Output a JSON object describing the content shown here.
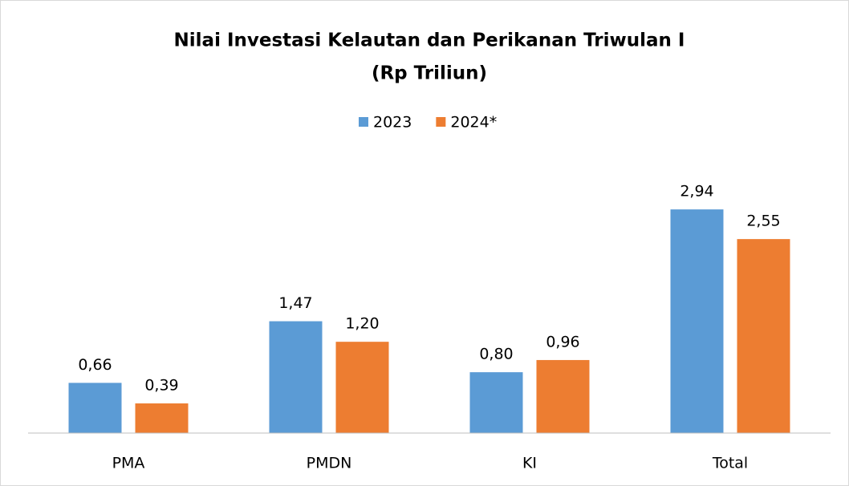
{
  "chart_data": {
    "type": "bar",
    "title": "Nilai  Investasi Kelautan dan Perikanan Triwulan I",
    "subtitle": "(Rp Triliun)",
    "categories": [
      "PMA",
      "PMDN",
      "KI",
      "Total"
    ],
    "series": [
      {
        "name": "2023",
        "color": "#5b9bd5",
        "values": [
          0.66,
          1.47,
          0.8,
          2.94
        ],
        "value_labels": [
          "0,66",
          "1,47",
          "0,80",
          "2,94"
        ]
      },
      {
        "name": "2024*",
        "color": "#ed7d31",
        "values": [
          0.39,
          1.2,
          0.96,
          2.55
        ],
        "value_labels": [
          "0,39",
          "1,20",
          "0,96",
          "2,55"
        ]
      }
    ],
    "ylim": [
      0,
      3.5
    ],
    "legend": "top"
  }
}
